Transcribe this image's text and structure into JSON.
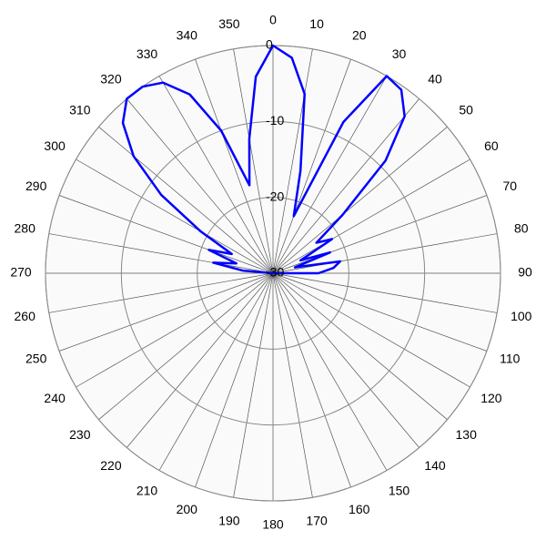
{
  "chart_data": {
    "type": "polar",
    "thetaticks": [
      0,
      10,
      20,
      30,
      40,
      50,
      60,
      70,
      80,
      90,
      100,
      110,
      120,
      130,
      140,
      150,
      160,
      170,
      180,
      190,
      200,
      210,
      220,
      230,
      240,
      250,
      260,
      270,
      280,
      290,
      300,
      310,
      320,
      330,
      340,
      350
    ],
    "rlim": [
      -30,
      0
    ],
    "rticks": [
      -30,
      -20,
      -10,
      0
    ],
    "grid": true,
    "series": [
      {
        "color": "#0000ff",
        "theta": [
          0,
          5,
          10,
          15,
          20,
          25,
          30,
          35,
          40,
          45,
          50,
          55,
          60,
          65,
          70,
          75,
          80,
          85,
          90,
          95,
          100,
          105,
          110,
          115,
          120,
          125,
          130,
          135,
          140,
          145,
          150,
          155,
          160,
          165,
          170,
          175,
          180,
          185,
          190,
          195,
          200,
          205,
          210,
          215,
          220,
          225,
          230,
          235,
          240,
          245,
          250,
          255,
          260,
          265,
          270,
          275,
          280,
          285,
          290,
          295,
          300,
          305,
          310,
          315,
          320,
          325,
          330,
          335,
          340,
          345,
          350,
          355
        ],
        "values": [
          0,
          -1.5,
          -6,
          -16,
          -22,
          -8,
          0,
          -0.5,
          -3,
          -9,
          -18,
          -23,
          -21,
          -26,
          -22,
          -27,
          -21,
          -22,
          -24,
          -30,
          -30,
          -30,
          -30,
          -30,
          -30,
          -30,
          -30,
          -30,
          -30,
          -30,
          -30,
          -30,
          -30,
          -30,
          -30,
          -30,
          -30,
          -30,
          -30,
          -30,
          -30,
          -30,
          -30,
          -30,
          -30,
          -30,
          -30,
          -30,
          -30,
          -30,
          -30,
          -30,
          -30,
          -30,
          -30,
          -26,
          -22,
          -25,
          -21,
          -24,
          -19,
          -12,
          -6,
          -2,
          0,
          0,
          -1,
          -4,
          -10,
          -18,
          -12,
          -4
        ]
      }
    ]
  }
}
